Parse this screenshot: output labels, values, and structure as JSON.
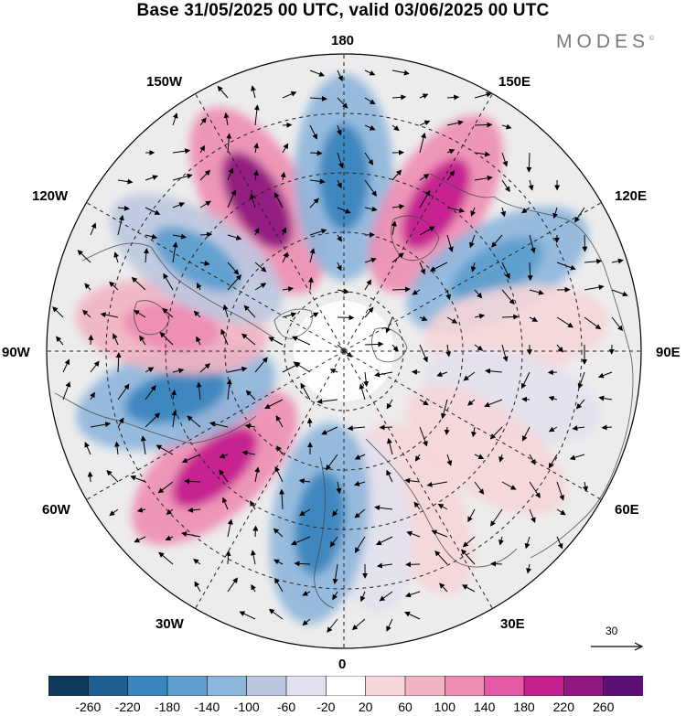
{
  "title": "Base 31/05/2025 00 UTC, valid 03/06/2025 00 UTC",
  "brand": {
    "name": "MODES",
    "mark": "©"
  },
  "longitude_labels": {
    "top": "180",
    "bottom": "0",
    "left": "90W",
    "right": "90E",
    "upper_left_1": "150W",
    "upper_left_2": "120W",
    "upper_right_1": "150E",
    "upper_right_2": "120E",
    "lower_left_1": "60W",
    "lower_left_2": "30W",
    "lower_right_1": "60E",
    "lower_right_2": "30E"
  },
  "reference_vector": {
    "label": "30"
  },
  "colorbar": {
    "colors": [
      "#0f3a5e",
      "#1f5f94",
      "#3b86be",
      "#5e9fcf",
      "#8db6dc",
      "#bcc8e0",
      "#e2e2ee",
      "#ffffff",
      "#f6d6d8",
      "#f2b3c2",
      "#ee8db3",
      "#e45aa5",
      "#c41e8f",
      "#8f177f",
      "#5c0f75"
    ],
    "labels": [
      "-260",
      "-220",
      "-180",
      "-140",
      "-100",
      "-60",
      "-20",
      "20",
      "60",
      "100",
      "140",
      "180",
      "220",
      "260"
    ]
  },
  "map": {
    "projection": "north polar stereographic",
    "anomaly_lobes": [
      {
        "sign": "positive",
        "level": 0.95,
        "lon": -150
      },
      {
        "sign": "negative",
        "level": 0.9,
        "lon": 180
      },
      {
        "sign": "positive",
        "level": 0.75,
        "lon": 148
      },
      {
        "sign": "negative",
        "level": 0.7,
        "lon": 118
      },
      {
        "sign": "positive",
        "level": 0.3,
        "lon": 97
      },
      {
        "sign": "negative",
        "level": 0.25,
        "lon": 75
      },
      {
        "sign": "positive",
        "level": 0.35,
        "lon": 55
      },
      {
        "sign": "positive",
        "level": 0.35,
        "lon": 25
      },
      {
        "sign": "negative",
        "level": 0.25,
        "lon": 8
      },
      {
        "sign": "negative",
        "level": 0.8,
        "lon": -8
      },
      {
        "sign": "positive",
        "level": 0.85,
        "lon": -48
      },
      {
        "sign": "negative",
        "level": 0.85,
        "lon": -75
      },
      {
        "sign": "positive",
        "level": 0.55,
        "lon": -98
      },
      {
        "sign": "negative",
        "level": 0.6,
        "lon": -122
      }
    ]
  }
}
